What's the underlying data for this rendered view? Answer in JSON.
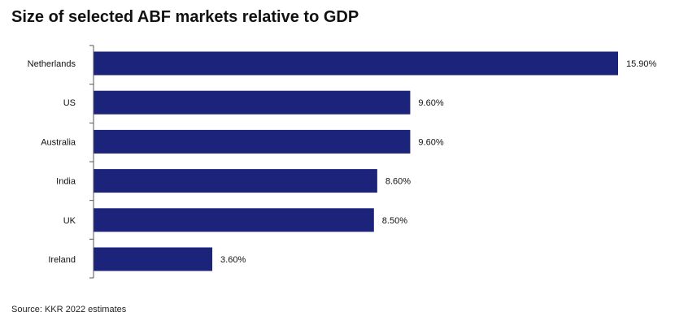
{
  "title": "Size of selected ABF markets relative to GDP",
  "source": "Source: KKR 2022 estimates",
  "colors": {
    "bar": "#1c237b",
    "axis": "#555555",
    "text": "#111111"
  },
  "chart_data": {
    "type": "bar",
    "orientation": "horizontal",
    "title": "Size of selected ABF markets relative to GDP",
    "categories": [
      "Netherlands",
      "US",
      "Australia",
      "India",
      "UK",
      "Ireland"
    ],
    "values": [
      15.9,
      9.6,
      9.6,
      8.6,
      8.5,
      3.6
    ],
    "value_labels": [
      "15.90%",
      "9.60%",
      "9.60%",
      "8.60%",
      "8.50%",
      "3.60%"
    ],
    "xlim": [
      0,
      15.9
    ],
    "grid": false,
    "legend": "none"
  }
}
